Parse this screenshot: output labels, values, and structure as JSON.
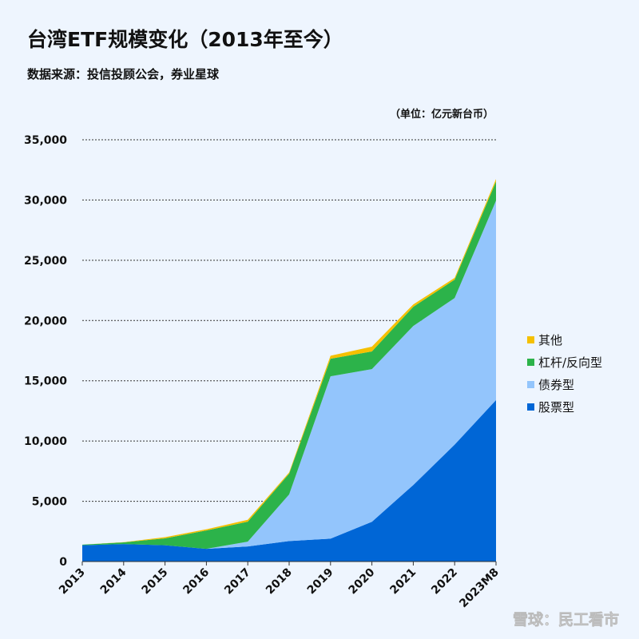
{
  "chart_data": {
    "type": "stacked_area",
    "title": "台湾ETF规模变化（2013年至今）",
    "subtitle": "数据来源：投信投顾公会，券业星球",
    "unit_label": "（单位：亿元新台币）",
    "watermark": "雪球：民工看市",
    "categories": [
      "2013",
      "2014",
      "2015",
      "2016",
      "2017",
      "2018",
      "2019",
      "2020",
      "2021",
      "2022",
      "2023M8"
    ],
    "series": [
      {
        "name": "股票型",
        "color": "#0066d6",
        "values": [
          1350,
          1450,
          1350,
          1050,
          1250,
          1700,
          1900,
          3300,
          6350,
          9700,
          13400
        ]
      },
      {
        "name": "债券型",
        "color": "#93c5fc",
        "values": [
          0,
          0,
          0,
          0,
          400,
          3870,
          13470,
          12670,
          13200,
          12170,
          16550
        ]
      },
      {
        "name": "杠杆/反向型",
        "color": "#2cb34a",
        "values": [
          50,
          140,
          570,
          1530,
          1660,
          1720,
          1460,
          1460,
          1590,
          1520,
          1590
        ]
      },
      {
        "name": "其他",
        "color": "#f5c000",
        "values": [
          0,
          20,
          100,
          100,
          150,
          100,
          250,
          400,
          200,
          150,
          200
        ]
      }
    ],
    "ylim": [
      0,
      35000
    ],
    "yticks": [
      0,
      {
        "value": 5000,
        "label": "5,000"
      },
      {
        "value": 10000,
        "label": "10,000"
      },
      {
        "value": 15000,
        "label": "15,000"
      },
      {
        "value": 20000,
        "label": "20,000"
      },
      {
        "value": 25000,
        "label": "25,000"
      },
      {
        "value": 30000,
        "label": "30,000"
      },
      {
        "value": 35000,
        "label": "35,000"
      }
    ],
    "grid": true,
    "legend": "right"
  }
}
